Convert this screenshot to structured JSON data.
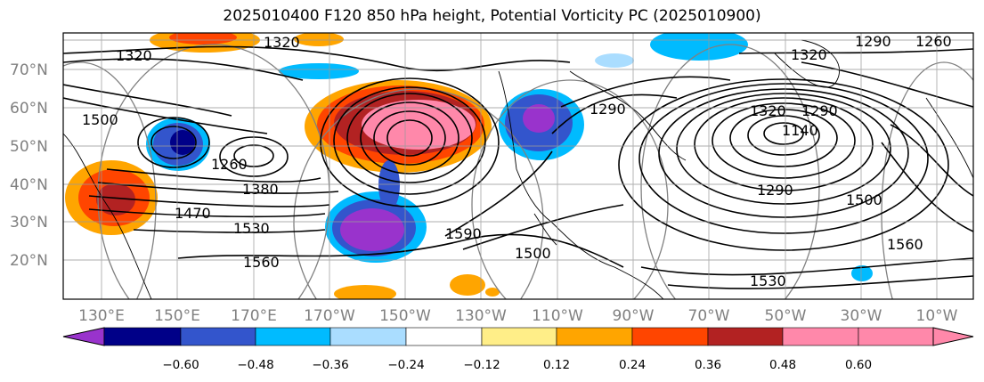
{
  "title": "2025010400 F120 850 hPa height, Potential Vorticity PC (2025010900)",
  "lat_labels": [
    "70°N",
    "60°N",
    "50°N",
    "40°N",
    "30°N",
    "20°N"
  ],
  "lon_labels": [
    "130°E",
    "150°E",
    "170°E",
    "170°W",
    "150°W",
    "130°W",
    "110°W",
    "90°W",
    "70°W",
    "50°W",
    "30°W",
    "10°W"
  ],
  "height_labels": [
    "1320",
    "1320",
    "1320",
    "1290",
    "1260",
    "1290",
    "1260",
    "1500",
    "1380",
    "1470",
    "1530",
    "1560",
    "1590",
    "1500",
    "1530",
    "1560",
    "1500",
    "1290",
    "1140",
    "1290",
    "1320"
  ],
  "colorbar": {
    "ticks": [
      "−0.60",
      "−0.48",
      "−0.36",
      "−0.24",
      "−0.12",
      "0.12",
      "0.24",
      "0.36",
      "0.48",
      "0.60"
    ],
    "colors": [
      "#9933cc",
      "#000088",
      "#3355cc",
      "#00bbff",
      "#aaddff",
      "#ffffff",
      "#ffee88",
      "#ffa500",
      "#ff4500",
      "#b22222",
      "#ff88aa",
      "#ff88aa"
    ]
  },
  "colors": {
    "contour_major": "#000000",
    "contour_minor": "#808080",
    "grid": "#999999",
    "coast": "#000000"
  }
}
